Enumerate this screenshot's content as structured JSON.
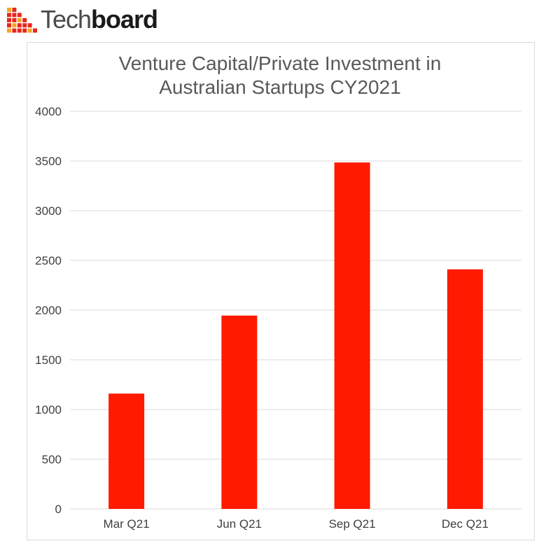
{
  "brand": {
    "name_light": "Tech",
    "name_bold": "board",
    "logo_icon": "techboard-grid-icon",
    "logo_color": "#e8261c",
    "logo_accent": "#f5a623"
  },
  "chart_data": {
    "type": "bar",
    "title_lines": [
      "Venture Capital/Private Investment in",
      "Australian Startups CY2021"
    ],
    "categories": [
      "Mar Q21",
      "Jun Q21",
      "Sep Q21",
      "Dec Q21"
    ],
    "values": [
      1160,
      1945,
      3485,
      2410
    ],
    "ylim": [
      0,
      4000
    ],
    "yticks": [
      "0",
      "500",
      "1000",
      "1500",
      "2000",
      "2500",
      "3000",
      "3500",
      "4000"
    ],
    "xlabel": "",
    "ylabel": "",
    "grid": true,
    "legend": "none",
    "bar_color": "#ff1a00",
    "grid_color": "#d9d9d9"
  }
}
